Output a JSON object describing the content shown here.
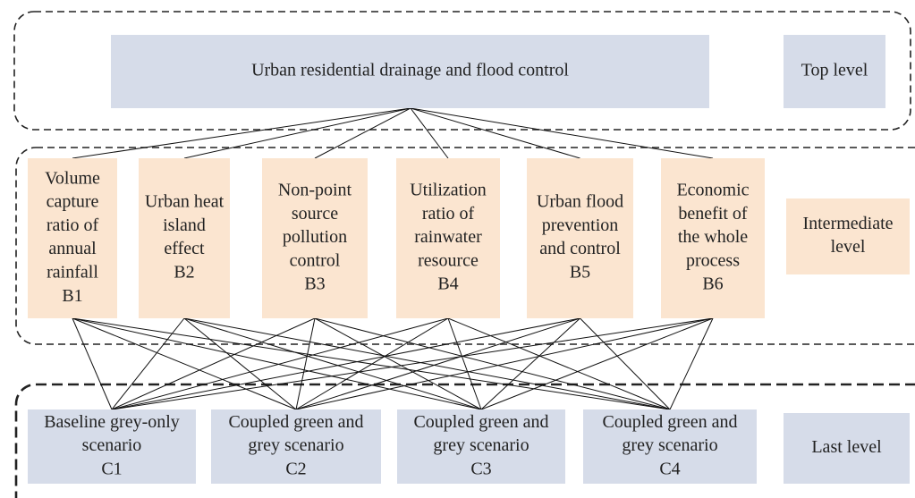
{
  "top_node": {
    "lines": [
      "Urban residential drainage and flood control"
    ]
  },
  "level_labels": {
    "top": [
      "Top level"
    ],
    "intermediate": [
      "Intermediate",
      "level"
    ],
    "last": [
      "Last level"
    ]
  },
  "intermediate_nodes": [
    {
      "lines": [
        "Volume",
        "capture",
        "ratio of",
        "annual",
        "rainfall",
        "B1"
      ]
    },
    {
      "lines": [
        "Urban heat",
        "island",
        "effect",
        "B2"
      ]
    },
    {
      "lines": [
        "Non-point",
        "source",
        "pollution",
        "control",
        "B3"
      ]
    },
    {
      "lines": [
        "Utilization",
        "ratio of",
        "rainwater",
        "resource",
        "B4"
      ]
    },
    {
      "lines": [
        "Urban flood",
        "prevention",
        "and control",
        "B5"
      ]
    },
    {
      "lines": [
        "Economic",
        "benefit of",
        "the whole",
        "process",
        "B6"
      ]
    }
  ],
  "last_nodes": [
    {
      "lines": [
        "Baseline grey-only",
        "scenario",
        "C1"
      ]
    },
    {
      "lines": [
        "Coupled green and",
        "grey scenario",
        "C2"
      ]
    },
    {
      "lines": [
        "Coupled green and",
        "grey scenario",
        "C3"
      ]
    },
    {
      "lines": [
        "Coupled green and",
        "grey scenario",
        "C4"
      ]
    }
  ]
}
